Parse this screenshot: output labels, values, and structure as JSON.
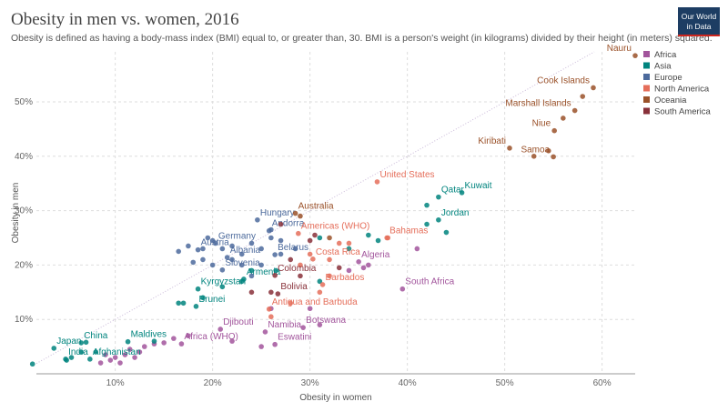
{
  "logo": [
    "Our World",
    "in Data"
  ],
  "chart_data": {
    "type": "scatter",
    "title": "Obesity in men vs. women, 2016",
    "subtitle": "Obesity is defined as having a body-mass index (BMI) equal to, or greater than, 30. BMI is a person's weight (in kilograms) divided by their height (in meters) squared.",
    "x_label": "Obesity in women",
    "y_label": "Obesity in men",
    "xlim": [
      1.9,
      63.4
    ],
    "ylim": [
      0,
      59.2
    ],
    "xticks": [
      {
        "value": 10,
        "label": "10%"
      },
      {
        "value": 20,
        "label": "20%"
      },
      {
        "value": 30,
        "label": "30%"
      },
      {
        "value": 40,
        "label": "40%"
      },
      {
        "value": 50,
        "label": "50%"
      },
      {
        "value": 60,
        "label": "60%"
      }
    ],
    "yticks": [
      {
        "value": 10,
        "label": "10%"
      },
      {
        "value": 20,
        "label": "20%"
      },
      {
        "value": 30,
        "label": "30%"
      },
      {
        "value": 40,
        "label": "40%"
      },
      {
        "value": 50,
        "label": "50%"
      }
    ],
    "grid": true,
    "diagonal": true,
    "legend": "right",
    "series": [
      {
        "name": "Africa",
        "color": "#a2559c",
        "x": [
          35.0,
          39.5,
          20.8,
          29.3,
          25.4,
          26.4,
          16.8,
          9.5,
          10,
          10.5,
          11,
          12,
          12.5,
          13,
          14,
          15,
          8.5,
          9,
          11.5,
          16,
          17.5,
          22,
          25,
          30,
          31,
          34,
          35.5,
          41,
          36,
          26
        ],
        "y": [
          20.6,
          15.6,
          8.2,
          8.5,
          7.7,
          5.4,
          5.5,
          2.5,
          3,
          2,
          3.5,
          3,
          4,
          5,
          5.5,
          5.7,
          2,
          3.5,
          4.5,
          6.5,
          7,
          6,
          5,
          12,
          9,
          19,
          19.5,
          23,
          20,
          12
        ],
        "labels": [
          "Algeria",
          "South Africa",
          "Djibouti",
          "Botswana",
          "Namibia",
          "Eswatini",
          "Africa (WHO)",
          null,
          null,
          null,
          null,
          null,
          null,
          null,
          null,
          null,
          null,
          null,
          null,
          null,
          null,
          null,
          null,
          null,
          null,
          null,
          null,
          null,
          null,
          null
        ]
      },
      {
        "name": "Asia",
        "color": "#00847e",
        "x": [
          45.6,
          43.2,
          43.2,
          23.2,
          18.5,
          18.3,
          11.3,
          6.5,
          3.7,
          4.9,
          7.4,
          1.5,
          5,
          5.5,
          6.5,
          7,
          8,
          14,
          17,
          19,
          21,
          23,
          24,
          26.5,
          31,
          36,
          37,
          42,
          42,
          34,
          44,
          31,
          16.5
        ],
        "y": [
          33.3,
          32.5,
          28.3,
          17.4,
          15.6,
          12.4,
          5.9,
          5.7,
          4.7,
          2.7,
          2.7,
          1.8,
          2.5,
          3,
          4,
          5.8,
          4,
          6,
          13,
          14,
          16,
          17,
          19,
          19,
          25,
          25.5,
          24.5,
          27.5,
          31,
          23,
          26,
          17,
          13
        ],
        "labels": [
          "Kuwait",
          "Qatar",
          "Jordan",
          "Armenia",
          "Kyrgyzstan",
          "Brunei",
          "Maldives",
          "China",
          "Japan",
          "India",
          "Afghanistan",
          null,
          null,
          null,
          null,
          null,
          null,
          null,
          null,
          null,
          null,
          null,
          null,
          null,
          null,
          null,
          null,
          null,
          null,
          null,
          null,
          null,
          null
        ]
      },
      {
        "name": "Europe",
        "color": "#4c6a9c",
        "x": [
          24.6,
          20.3,
          25.8,
          18.5,
          21.5,
          26.4,
          21.0,
          16.5,
          17.5,
          19,
          20,
          21,
          22,
          23,
          24,
          19.5,
          25,
          26,
          27,
          22,
          19,
          20,
          23,
          24,
          25,
          27,
          28.5,
          26,
          18
        ],
        "y": [
          28.3,
          24.0,
          26.3,
          22.8,
          21.4,
          21.9,
          19.1,
          22.5,
          23.5,
          23,
          24.5,
          23,
          23.5,
          22,
          24,
          25,
          23,
          25,
          24.5,
          21,
          21,
          20,
          20,
          18,
          20,
          22,
          23,
          26.5,
          20.5
        ],
        "labels": [
          "Hungary",
          "Germany",
          "Andorra",
          "Austria",
          "Albania",
          "Belarus",
          "Slovenia",
          null,
          null,
          null,
          null,
          null,
          null,
          null,
          null,
          null,
          null,
          null,
          null,
          null,
          null,
          null,
          null,
          null,
          null,
          null,
          null,
          null,
          null
        ]
      },
      {
        "name": "North America",
        "color": "#e56e5a",
        "x": [
          36.9,
          37.9,
          30.3,
          31.3,
          25.8,
          28.8,
          28,
          31,
          32,
          33,
          34,
          38,
          30,
          32,
          29,
          26
        ],
        "y": [
          35.3,
          25.0,
          21.1,
          16.4,
          11.9,
          25.8,
          13,
          15,
          18,
          24,
          24,
          25,
          22,
          21,
          20,
          10.5
        ],
        "labels": [
          "United States",
          "Bahamas",
          "Costa Rica",
          "Barbados",
          "Antigua and Barbuda",
          "Americas (WHO)",
          null,
          null,
          null,
          null,
          null,
          null,
          null,
          null,
          null,
          null
        ]
      },
      {
        "name": "Oceania",
        "color": "#9a5129",
        "x": [
          63.4,
          59.1,
          57.2,
          55.1,
          50.5,
          55.0,
          28.5,
          53,
          56,
          58,
          54.5,
          32,
          29
        ],
        "y": [
          58.5,
          52.6,
          48.4,
          44.7,
          41.5,
          39.9,
          29.5,
          40,
          47,
          51,
          41,
          25,
          29
        ],
        "labels": [
          "Nauru",
          "Cook Islands",
          "Marshall Islands",
          "Niue",
          "Kiribati",
          "Samoa",
          "Australia",
          null,
          null,
          null,
          null,
          null,
          null
        ]
      },
      {
        "name": "South America",
        "color": "#883039",
        "x": [
          26.4,
          26.7,
          29,
          28,
          33,
          26,
          24,
          27,
          30,
          30.5
        ],
        "y": [
          18.1,
          14.7,
          18,
          21,
          19.5,
          15,
          15,
          27.5,
          24.5,
          25.5
        ],
        "labels": [
          "Colombia",
          "Bolivia",
          null,
          null,
          null,
          null,
          null,
          null,
          null,
          null
        ]
      }
    ]
  }
}
